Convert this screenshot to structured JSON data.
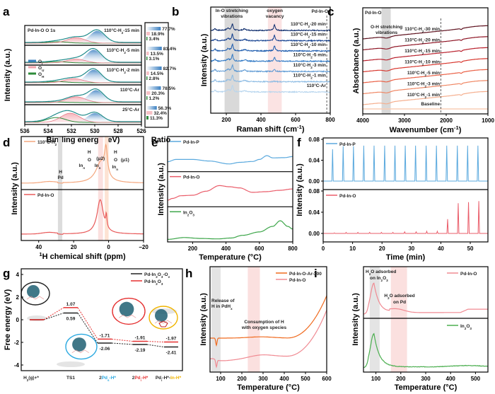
{
  "chart_data": [
    {
      "panel": "a",
      "type": "area",
      "title": "Pd-In-O  O 1s",
      "xlabel": "Binding energy (eV)",
      "ylabel": "Intensity (a.u.)",
      "xlim": [
        536,
        526
      ],
      "xticks": [
        "536",
        "534",
        "532",
        "530",
        "528",
        "526"
      ],
      "legend": [
        {
          "name": "O_L",
          "label": "OL",
          "color": "#3a7fc1"
        },
        {
          "name": "O_U",
          "label": "OU",
          "color": "#f2a5ad"
        },
        {
          "name": "O_H",
          "label": "OH",
          "color": "#2e8b3a"
        }
      ],
      "envelope_color": "#1f8a8a",
      "series": [
        {
          "name": "110°C-H2-15 min",
          "OL_center": 529.8,
          "OU_center": 531.6,
          "OH_center": 533.2,
          "OL": 77.7,
          "OU": 18.9,
          "OH": 3.4
        },
        {
          "name": "110°C-H2-5 min",
          "OL_center": 530.1,
          "OU_center": 531.6,
          "OH_center": 533.2,
          "OL": 83.4,
          "OU": 13.5,
          "OH": 3.1
        },
        {
          "name": "110°C-H2-2 min",
          "OL_center": 530.1,
          "OU_center": 531.8,
          "OH_center": 533.2,
          "OL": 82.7,
          "OU": 14.5,
          "OH": 2.8
        },
        {
          "name": "110°C-Ar",
          "OL_center": 529.9,
          "OU_center": 531.6,
          "OH_center": 533.2,
          "OL": 78.5,
          "OU": 20.3,
          "OH": 1.2
        },
        {
          "name": "25°C-Ar",
          "OL_center": 530.0,
          "OU_center": 532.1,
          "OH_center": 533.3,
          "OL": 56.3,
          "OU": 32.4,
          "OH": 11.3
        }
      ],
      "ratio_title": "Ratio",
      "ratio_labels": [
        [
          "77.7%",
          "18.9%",
          "3.4%"
        ],
        [
          "83.4%",
          "13.5%",
          "3.1%"
        ],
        [
          "82.7%",
          "14.5%",
          "2.8%"
        ],
        [
          "78.5%",
          "20.3%",
          "1.2%"
        ],
        [
          "56.3%",
          "32.4%",
          "11.3%"
        ]
      ]
    },
    {
      "panel": "b",
      "type": "line",
      "title": "Pd-In-O",
      "xlabel": "Raman shift (cm-1)",
      "ylabel": "Intensity (a.u.)",
      "xlim": [
        110,
        800
      ],
      "xticks": [
        "200",
        "400",
        "600",
        "800"
      ],
      "xtick_values": [
        200,
        400,
        600,
        800
      ],
      "bands": [
        {
          "label1": "In-O stretching",
          "label2": "vibrations",
          "range": [
            190,
            275
          ],
          "color": "#d9d9d9"
        },
        {
          "label1": "oxygen",
          "label2": "vacancy",
          "range": [
            440,
            520
          ],
          "color": "#fbe3e3"
        }
      ],
      "peaks": [
        135,
        210,
        235,
        305,
        478
      ],
      "series": [
        {
          "name": "110°C-H2-20 min",
          "color": "#0b2a6b",
          "vacancy_peak": 1.0
        },
        {
          "name": "110°C-H2-15 min",
          "color": "#123f8f",
          "vacancy_peak": 1.0
        },
        {
          "name": "110°C-H2-10 min",
          "color": "#1b5aad",
          "vacancy_peak": 0.9
        },
        {
          "name": "110°C-H2-5 min",
          "color": "#2f78c4",
          "vacancy_peak": 0.7
        },
        {
          "name": "110°C-H2-3 min",
          "color": "#5d99d3",
          "vacancy_peak": 0.35
        },
        {
          "name": "110°C-H2-1 min",
          "color": "#8cbbe3",
          "vacancy_peak": 0.1
        },
        {
          "name": "110°C-Ar",
          "color": "#b7d5ee",
          "vacancy_peak": 0.0
        }
      ],
      "dashed_line_x": 780
    },
    {
      "panel": "c",
      "type": "line",
      "title": "Pd-In-O",
      "xlabel": "Wavenumber (cm-1)",
      "ylabel": "Absorbance (a.u.)",
      "xlim": [
        4000,
        1000
      ],
      "xticks": [
        "4000",
        "3000",
        "2000",
        "1000"
      ],
      "xtick_values": [
        4000,
        3000,
        2000,
        1000
      ],
      "bands": [
        {
          "label1": "O-H stretching",
          "label2": "vibrations",
          "range": [
            3550,
            3330
          ],
          "color": "#d9d9d9"
        }
      ],
      "dashed_line_x": 2130,
      "series": [
        {
          "name": "110°C-H2-30 min",
          "color": "#5c0f1c"
        },
        {
          "name": "110°C-H2-20 min",
          "color": "#8e1424"
        },
        {
          "name": "110°C-H2-15 min",
          "color": "#b81e2a"
        },
        {
          "name": "110°C-H2-10 min",
          "color": "#d8372e"
        },
        {
          "name": "110°C-H2-5 min",
          "color": "#ea5f44"
        },
        {
          "name": "110°C-H2-3 min",
          "color": "#f08764"
        },
        {
          "name": "110°C-H2-1 min",
          "color": "#f5ae8d"
        },
        {
          "name": "Baseline",
          "color": "#f9cdb6"
        }
      ]
    },
    {
      "panel": "d",
      "type": "line",
      "xlabel": "1H chemical shift (ppm)",
      "ylabel": "Intensity (a.u.)",
      "xlim": [
        50,
        -20
      ],
      "xticks": [
        "40",
        "20",
        "0",
        "−20"
      ],
      "xtick_values": [
        40,
        20,
        0,
        -20
      ],
      "bands": [
        {
          "range": [
            29,
            26.5
          ],
          "color": "#dcdcdc"
        },
        {
          "range": [
            6,
            3.2
          ],
          "color": "#fbe0df"
        },
        {
          "range": [
            2.2,
            0
          ],
          "color": "#fde3d3"
        }
      ],
      "annotations": {
        "pd_h": [
          "H",
          "Pd"
        ],
        "mu2": {
          "top": "H",
          "mid": "O",
          "tag": "(μ2)",
          "left": "Inn",
          "right": "Inn"
        },
        "mu1": {
          "top": "H",
          "mid": "O",
          "tag": "(μ1)",
          "bottom": "Inn"
        }
      },
      "series": [
        {
          "name": "110°C-H2",
          "color": "#f4a77e",
          "peaks": [
            {
              "x": 4.5,
              "h": 0.55,
              "w": 3.5
            },
            {
              "x": 1.5,
              "h": 0.75,
              "w": 1.0
            }
          ]
        },
        {
          "name": "Pd-In-O",
          "color": "#e85a5a",
          "peaks": [
            {
              "x": 4.8,
              "h": 0.85,
              "w": 2.2
            },
            {
              "x": 1.3,
              "h": 0.3,
              "w": 0.4
            }
          ]
        }
      ]
    },
    {
      "panel": "e",
      "type": "line",
      "xlabel": "Temperature (°C)",
      "ylabel": "Intensity (a.u.)",
      "xlim": [
        50,
        800
      ],
      "xticks": [
        "200",
        "400",
        "600",
        "800"
      ],
      "xtick_values": [
        200,
        400,
        600,
        800
      ],
      "series": [
        {
          "name": "Pd-In-P",
          "color": "#5aa9de",
          "points": [
            [
              50,
              0.35
            ],
            [
              100,
              0.45
            ],
            [
              200,
              0.45
            ],
            [
              300,
              0.38
            ],
            [
              420,
              0.25
            ],
            [
              480,
              0.32
            ],
            [
              560,
              0.36
            ],
            [
              600,
              0.45
            ],
            [
              645,
              0.62
            ],
            [
              680,
              0.52
            ],
            [
              750,
              0.53
            ],
            [
              800,
              0.58
            ]
          ]
        },
        {
          "name": "Pd-In-O",
          "color": "#ea5d6a",
          "points": [
            [
              50,
              0.2
            ],
            [
              80,
              0.28
            ],
            [
              130,
              0.4
            ],
            [
              200,
              0.42
            ],
            [
              280,
              0.6
            ],
            [
              360,
              0.85
            ],
            [
              420,
              0.8
            ],
            [
              480,
              0.75
            ],
            [
              560,
              0.55
            ],
            [
              640,
              0.58
            ],
            [
              720,
              0.64
            ],
            [
              800,
              0.7
            ]
          ]
        },
        {
          "name": "In2O3",
          "color": "#3da64a",
          "points": [
            [
              50,
              0.02
            ],
            [
              150,
              0.1
            ],
            [
              250,
              0.06
            ],
            [
              350,
              0.04
            ],
            [
              430,
              0.08
            ],
            [
              500,
              0.2
            ],
            [
              600,
              0.35
            ],
            [
              680,
              0.6
            ],
            [
              725,
              0.85
            ],
            [
              770,
              0.6
            ],
            [
              800,
              0.48
            ]
          ]
        }
      ]
    },
    {
      "panel": "f",
      "type": "line",
      "xlabel": "Time (min)",
      "ylabel": "Intensity (a.u.)",
      "xlim": [
        0,
        56
      ],
      "ylim": [
        0,
        0.08
      ],
      "xticks": [
        "0",
        "10",
        "20",
        "30",
        "40",
        "50"
      ],
      "xtick_values": [
        0,
        10,
        20,
        30,
        40,
        50
      ],
      "yticks": [
        "0.00",
        "0.04",
        "0.08"
      ],
      "series": [
        {
          "name": "Pd-In-P",
          "color": "#5aa9de",
          "pulse_times": [
            3.2,
            6.8,
            10.3,
            13.8,
            17.3,
            20.9,
            24.4,
            27.9,
            31.4,
            35.0,
            38.5,
            42.0,
            45.6,
            49.1,
            52.6
          ],
          "pulse_heights": [
            0.061,
            0.067,
            0.067,
            0.068,
            0.068,
            0.068,
            0.068,
            0.068,
            0.068,
            0.068,
            0.068,
            0.068,
            0.068,
            0.068,
            0.068
          ]
        },
        {
          "name": "Pd-In-O",
          "color": "#ea5d6a",
          "pulse_times": [
            3.8,
            7.8,
            11.8,
            15.8,
            19.8,
            23.7,
            27.7,
            31.6,
            35.2,
            38.8,
            42.3,
            45.9,
            49.4,
            52.9
          ],
          "pulse_heights": [
            0.001,
            0.002,
            0.002,
            0.002,
            0.002,
            0.002,
            0.003,
            0.003,
            0.004,
            0.004,
            0.027,
            0.057,
            0.059,
            0.061
          ]
        }
      ]
    },
    {
      "panel": "g",
      "type": "line",
      "ylabel": "Free energy (eV)",
      "ylim": [
        -4.5,
        4.5
      ],
      "yticks": [
        "4",
        "2",
        "0",
        "-2",
        "-4"
      ],
      "ytick_values": [
        4,
        2,
        0,
        -2,
        -4
      ],
      "categories": [
        "H2(g)+*",
        "TS1",
        "2Pds-H*",
        "2Pdi-H*",
        "Pdi-H*-In-H*"
      ],
      "category_colors": [
        "#333333",
        "#333333",
        "#29a8e0",
        "#e53030",
        "#f0b400"
      ],
      "series": [
        {
          "name": "Pd-In2O3-Ov",
          "color": "#222222",
          "values": [
            0,
            0.59,
            -2.06,
            -2.19,
            -2.41
          ],
          "labels": [
            "",
            "0.59",
            "-2.06",
            "-2.19",
            "-2.41"
          ]
        },
        {
          "name": "Pd-In2O3",
          "color": "#e53030",
          "values": [
            0,
            1.07,
            -1.71,
            -1.91,
            -1.97
          ],
          "labels": [
            "",
            "1.07",
            "-1.71",
            "-1.91",
            "-1.97"
          ]
        }
      ],
      "circle_colors": [
        "#222222",
        "#29a8e0",
        "#e53030",
        "#f0b400"
      ]
    },
    {
      "panel": "h",
      "type": "line",
      "xlabel": "Temperature (°C)",
      "ylabel": "Intensity (a.u.)",
      "xlim": [
        50,
        600
      ],
      "xticks": [
        "100",
        "200",
        "300",
        "400",
        "500",
        "600"
      ],
      "xtick_values": [
        100,
        200,
        300,
        400,
        500,
        600
      ],
      "bands": [
        {
          "label1": "Release of",
          "label2": "H in PdHx",
          "range": [
            57,
            100
          ],
          "color": "#e4e4e4"
        },
        {
          "label1": "Consumption of H",
          "label2": "with oxygen species",
          "range": [
            228,
            285
          ],
          "color": "#fbe0df"
        }
      ],
      "series": [
        {
          "name": "Pd-In-O-Ar-300",
          "color": "#f06a1e"
        },
        {
          "name": "Pd-In-O",
          "color": "#f08a92"
        }
      ]
    },
    {
      "panel": "i",
      "type": "line",
      "xlabel": "Temperature (°C)",
      "ylabel": "Intensity (a.u.)",
      "xlim": [
        50,
        550
      ],
      "xticks": [
        "100",
        "200",
        "300",
        "400",
        "500"
      ],
      "xtick_values": [
        100,
        200,
        300,
        400,
        500
      ],
      "bands": [
        {
          "label1": "H2O adsorbed",
          "label2": "on In2O3",
          "range": [
            75,
            115
          ],
          "color": "#e4e4e4"
        },
        {
          "label1": "H2O adsorbed",
          "label2": "on Pd",
          "range": [
            160,
            225
          ],
          "color": "#fbe0df"
        }
      ],
      "series": [
        {
          "name": "Pd-In-O",
          "color": "#f08a92"
        },
        {
          "name": "In2O3",
          "color": "#4caf50"
        }
      ]
    }
  ],
  "panel_letters": [
    "a",
    "b",
    "c",
    "d",
    "e",
    "f",
    "g",
    "h",
    "i"
  ]
}
